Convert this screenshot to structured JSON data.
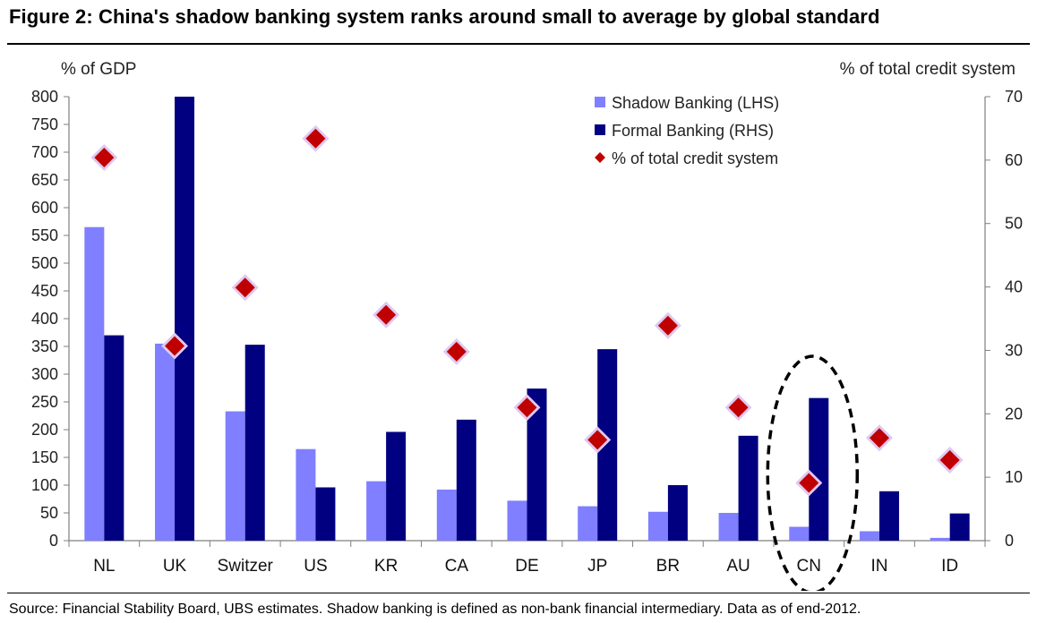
{
  "header": {
    "title": "Figure 2: China's shadow banking system ranks around small to average by global standard"
  },
  "footer": {
    "source": "Source: Financial Stability Board, UBS estimates. Shadow banking is defined as non-bank financial intermediary. Data as of end-2012."
  },
  "colors": {
    "shadow": "#7F7FFF",
    "formal": "#000080",
    "marker": "#C00000",
    "marker_halo": "#E0C8F0",
    "highlight": "#000000"
  },
  "chart_data": {
    "type": "bar",
    "categories": [
      "NL",
      "UK",
      "Switzer",
      "US",
      "KR",
      "CA",
      "DE",
      "JP",
      "BR",
      "AU",
      "CN",
      "IN",
      "ID"
    ],
    "ylabel_left": "% of GDP",
    "ylabel_right": "% of total credit system",
    "ylim_left": [
      0,
      800
    ],
    "ylim_right": [
      0,
      70
    ],
    "yticks_left": [
      0,
      50,
      100,
      150,
      200,
      250,
      300,
      350,
      400,
      450,
      500,
      550,
      600,
      650,
      700,
      750,
      800
    ],
    "yticks_right": [
      0,
      10,
      20,
      30,
      40,
      50,
      60,
      70
    ],
    "series": [
      {
        "name": "Shadow Banking (LHS)",
        "type": "bar",
        "axis": "left",
        "values": [
          565,
          355,
          233,
          165,
          107,
          92,
          72,
          62,
          52,
          50,
          25,
          17,
          5
        ]
      },
      {
        "name": "Formal Banking (RHS)",
        "type": "bar",
        "axis": "left",
        "values": [
          370,
          800,
          353,
          96,
          196,
          218,
          274,
          345,
          100,
          189,
          257,
          89,
          49
        ]
      },
      {
        "name": "% of total credit system",
        "type": "scatter",
        "axis": "right",
        "values": [
          60.4,
          30.7,
          39.9,
          63.4,
          35.6,
          29.8,
          21.0,
          15.9,
          33.9,
          21.0,
          9.1,
          16.2,
          12.7
        ]
      }
    ],
    "highlight": "CN",
    "legend_position": "top-right",
    "grid": false
  }
}
